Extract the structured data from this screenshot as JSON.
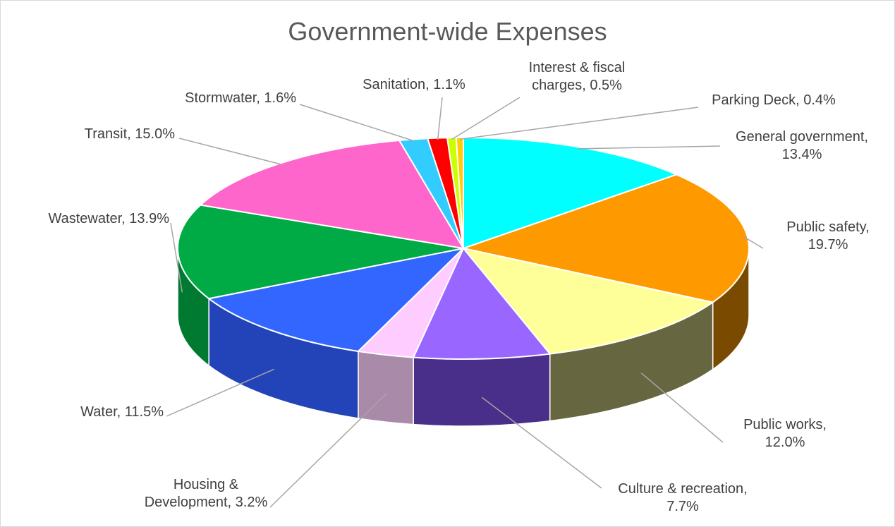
{
  "chart_data": {
    "type": "pie",
    "style": "3d",
    "title": "Government-wide Expenses",
    "legend": "none",
    "slices": [
      {
        "label": "General government",
        "value": 13.4,
        "display": "13.4%",
        "color": "#00ffff",
        "side_color": "#00b3b3"
      },
      {
        "label": "Public safety",
        "value": 19.7,
        "display": "19.7%",
        "color": "#ff9900",
        "side_color": "#7a4a00"
      },
      {
        "label": "Public works",
        "value": 12.0,
        "display": "12.0%",
        "color": "#ffff99",
        "side_color": "#666640"
      },
      {
        "label": "Culture & recreation",
        "value": 7.7,
        "display": "7.7%",
        "color": "#9966ff",
        "side_color": "#4a2f8a"
      },
      {
        "label": "Housing & Development",
        "value": 3.2,
        "display": "3.2%",
        "color": "#ffccff",
        "side_color": "#a98aa9"
      },
      {
        "label": "Water",
        "value": 11.5,
        "display": "11.5%",
        "color": "#3366ff",
        "side_color": "#2244b8"
      },
      {
        "label": "Wastewater",
        "value": 13.9,
        "display": "13.9%",
        "color": "#00aa44",
        "side_color": "#007a30"
      },
      {
        "label": "Transit",
        "value": 15.0,
        "display": "15.0%",
        "color": "#ff66cc",
        "side_color": "#b34790"
      },
      {
        "label": "Stormwater",
        "value": 1.6,
        "display": "1.6%",
        "color": "#33ccff",
        "side_color": "#2290b3"
      },
      {
        "label": "Sanitation",
        "value": 1.1,
        "display": "1.1%",
        "color": "#ff0000",
        "side_color": "#aa0000"
      },
      {
        "label": "Interest & fiscal charges",
        "value": 0.5,
        "display": "0.5%",
        "color": "#ccff00",
        "side_color": "#8aaa00"
      },
      {
        "label": "Parking Deck",
        "value": 0.4,
        "display": "0.4%",
        "color": "#ffcc00",
        "side_color": "#aa8800"
      }
    ]
  }
}
